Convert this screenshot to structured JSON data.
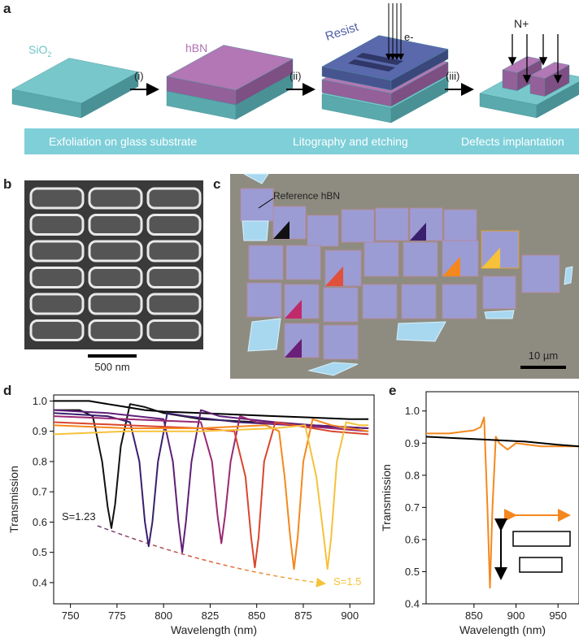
{
  "panel_labels": [
    "a",
    "b",
    "c",
    "d",
    "e"
  ],
  "panel_a": {
    "sio2": {
      "text": "SiO",
      "subscript": "2"
    },
    "hbn": "hBN",
    "resist": "Resist",
    "electron": "e-",
    "nitrogen": "N+",
    "steps": [
      "(i)",
      "(ii)",
      "(iii)"
    ],
    "banner": [
      "Exfoliation on glass substrate",
      "Litography and etching",
      "Defects implantation"
    ]
  },
  "panel_b": {
    "scale_bar": "500 nm"
  },
  "panel_c": {
    "reference": "Reference hBN",
    "scale_bar": "10 µm"
  },
  "chart_data": [
    {
      "type": "line",
      "xlabel": "Wavelength (nm)",
      "ylabel": "Transmission",
      "xlim": [
        741,
        913
      ],
      "ylim": [
        0.33,
        1.02
      ],
      "xticks": [
        750,
        775,
        800,
        825,
        850,
        875,
        900
      ],
      "yticks": [
        0.4,
        0.5,
        0.6,
        0.7,
        0.8,
        0.9,
        {
          "value": 1,
          "label": "1.0"
        }
      ],
      "annotations": [
        {
          "text": "S=1.23",
          "color": "#222222"
        },
        {
          "text": "S=1.5",
          "color": "#f5c23a"
        }
      ],
      "series": [
        {
          "color": "#000000",
          "x": [
            741,
            760,
            770,
            780,
            790,
            800,
            820,
            840,
            860,
            880,
            900,
            910
          ],
          "values": [
            1.0,
            1.0,
            0.99,
            0.98,
            0.97,
            0.965,
            0.96,
            0.955,
            0.95,
            0.945,
            0.94,
            0.94
          ]
        },
        {
          "color": "#111111",
          "x": [
            741,
            755,
            762,
            767,
            770,
            772,
            774,
            777,
            782,
            790,
            800,
            820,
            850,
            880,
            910
          ],
          "values": [
            0.97,
            0.97,
            0.95,
            0.8,
            0.65,
            0.58,
            0.66,
            0.85,
            0.99,
            0.98,
            0.96,
            0.94,
            0.93,
            0.92,
            0.91
          ]
        },
        {
          "color": "#3a1f6e",
          "x": [
            741,
            770,
            782,
            787,
            790,
            792,
            794,
            797,
            802,
            812,
            840,
            870,
            910
          ],
          "values": [
            0.96,
            0.95,
            0.93,
            0.8,
            0.6,
            0.52,
            0.6,
            0.8,
            0.96,
            0.95,
            0.93,
            0.92,
            0.91
          ]
        },
        {
          "color": "#5e1f78",
          "x": [
            741,
            770,
            800,
            805,
            808,
            810,
            812,
            815,
            820,
            830,
            860,
            880,
            910
          ],
          "values": [
            0.97,
            0.96,
            0.94,
            0.8,
            0.6,
            0.5,
            0.6,
            0.8,
            0.97,
            0.95,
            0.93,
            0.92,
            0.91
          ]
        },
        {
          "color": "#9a2873",
          "x": [
            741,
            780,
            820,
            826,
            829,
            831,
            833,
            836,
            841,
            850,
            870,
            890,
            910
          ],
          "values": [
            0.95,
            0.94,
            0.93,
            0.8,
            0.62,
            0.53,
            0.62,
            0.8,
            0.95,
            0.93,
            0.92,
            0.91,
            0.9
          ]
        },
        {
          "color": "#d9462e",
          "x": [
            741,
            780,
            820,
            838,
            844,
            847,
            849,
            851,
            854,
            860,
            870,
            890,
            910
          ],
          "values": [
            0.93,
            0.92,
            0.91,
            0.9,
            0.75,
            0.55,
            0.45,
            0.55,
            0.8,
            0.93,
            0.92,
            0.9,
            0.89
          ]
        },
        {
          "color": "#f4881e",
          "x": [
            741,
            780,
            820,
            855,
            862,
            865,
            868,
            870,
            872,
            875,
            880,
            890,
            910
          ],
          "values": [
            0.92,
            0.91,
            0.91,
            0.92,
            0.9,
            0.75,
            0.55,
            0.445,
            0.55,
            0.8,
            0.94,
            0.92,
            0.9
          ]
        },
        {
          "color": "#f5c23a",
          "x": [
            741,
            780,
            820,
            860,
            876,
            882,
            886,
            888,
            890,
            893,
            898,
            905,
            910
          ],
          "values": [
            0.89,
            0.9,
            0.9,
            0.91,
            0.92,
            0.75,
            0.55,
            0.445,
            0.55,
            0.8,
            0.93,
            0.92,
            0.92
          ]
        }
      ]
    },
    {
      "type": "line",
      "xlabel": "Wavelength (nm)",
      "ylabel": "Transmission",
      "xlim": [
        793,
        975
      ],
      "ylim": [
        0.4,
        1.06
      ],
      "xticks": [
        850,
        900,
        950
      ],
      "yticks": [
        0.4,
        0.5,
        0.6,
        0.7,
        0.8,
        0.9,
        {
          "value": 1,
          "label": "1.0"
        }
      ],
      "series": [
        {
          "color": "#f4881e",
          "x": [
            793,
            820,
            850,
            858,
            862,
            866,
            869,
            872,
            876,
            880,
            890,
            900,
            930,
            975
          ],
          "values": [
            0.93,
            0.93,
            0.94,
            0.95,
            0.98,
            0.7,
            0.45,
            0.7,
            0.92,
            0.9,
            0.88,
            0.9,
            0.89,
            0.89
          ]
        },
        {
          "color": "#000000",
          "x": [
            793,
            830,
            870,
            910,
            950,
            975
          ],
          "values": [
            0.92,
            0.915,
            0.91,
            0.905,
            0.895,
            0.89
          ]
        }
      ]
    }
  ]
}
